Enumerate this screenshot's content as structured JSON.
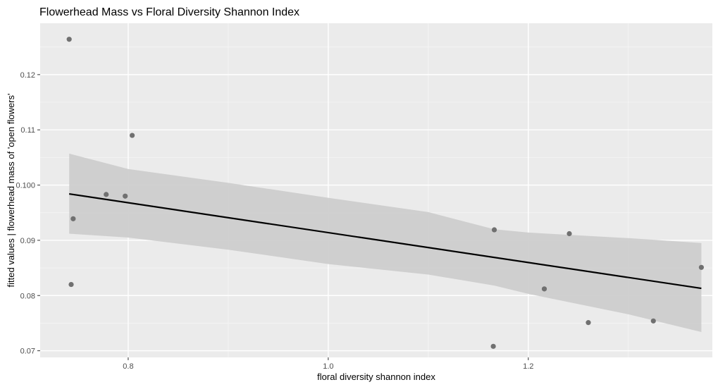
{
  "chart_data": {
    "type": "scatter",
    "title": "Flowerhead Mass vs Floral Diversity Shannon Index",
    "xlabel": "floral diversity shannon index",
    "ylabel": "fitted values | flowerhead mass of 'open flowers'",
    "xlim": [
      0.712,
      1.384
    ],
    "ylim": [
      0.0688,
      0.1293
    ],
    "x_ticks": [
      0.8,
      1.0,
      1.2
    ],
    "x_tick_labels": [
      "0.8",
      "1.0",
      "1.2"
    ],
    "y_ticks": [
      0.07,
      0.08,
      0.09,
      0.1,
      0.11,
      0.12
    ],
    "y_tick_labels": [
      "0.07",
      "0.08",
      "0.09",
      "0.100",
      "0.11",
      "0.12"
    ],
    "grid": true,
    "background": "#ebebeb",
    "point_color": "#707070",
    "line_color": "#000000",
    "band_color": "#cdcdcd",
    "points": [
      {
        "x": 0.741,
        "y": 0.1264
      },
      {
        "x": 0.745,
        "y": 0.0939
      },
      {
        "x": 0.743,
        "y": 0.082
      },
      {
        "x": 0.778,
        "y": 0.0983
      },
      {
        "x": 0.797,
        "y": 0.098
      },
      {
        "x": 0.804,
        "y": 0.109
      },
      {
        "x": 1.166,
        "y": 0.0919
      },
      {
        "x": 1.165,
        "y": 0.0708
      },
      {
        "x": 1.216,
        "y": 0.0812
      },
      {
        "x": 1.241,
        "y": 0.0912
      },
      {
        "x": 1.26,
        "y": 0.0751
      },
      {
        "x": 1.325,
        "y": 0.0754
      },
      {
        "x": 1.373,
        "y": 0.0851
      }
    ],
    "fit_line": {
      "x": [
        0.741,
        1.373
      ],
      "y": [
        0.0984,
        0.0813
      ]
    },
    "confidence_band": {
      "x": [
        0.741,
        0.8,
        0.9,
        1.0,
        1.1,
        1.166,
        1.2,
        1.3,
        1.373
      ],
      "upper": [
        0.1057,
        0.1029,
        0.1004,
        0.0977,
        0.0951,
        0.092,
        0.0914,
        0.0904,
        0.0895
      ],
      "lower": [
        0.0912,
        0.0905,
        0.0883,
        0.0857,
        0.0838,
        0.0818,
        0.0803,
        0.0766,
        0.0734
      ]
    }
  }
}
